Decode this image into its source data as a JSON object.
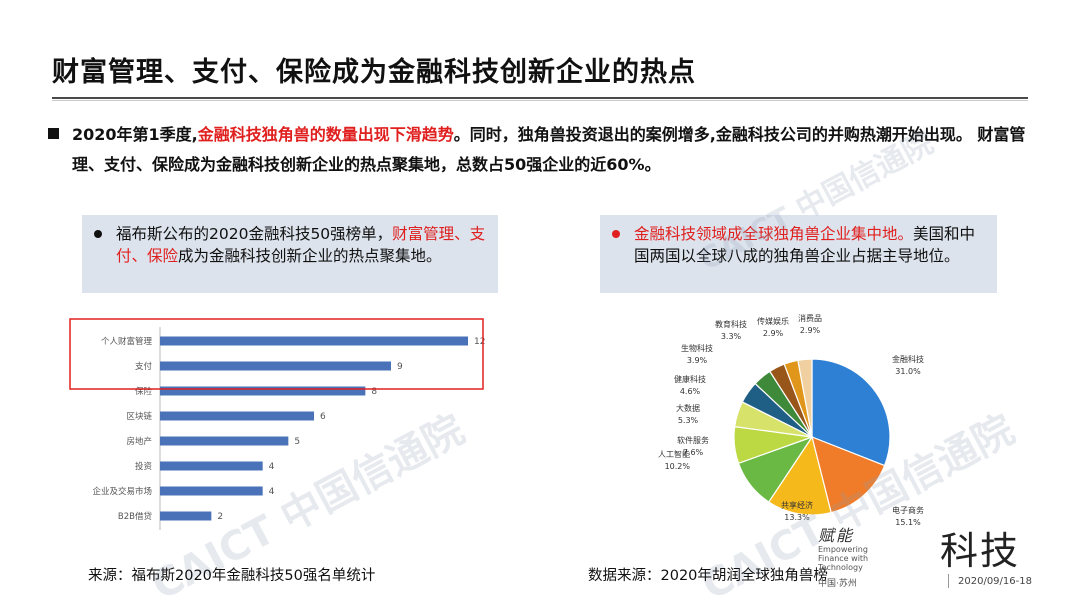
{
  "title": "财富管理、支付、保险成为金融科技创新企业的热点",
  "intro": {
    "part1": "2020年第1季度,",
    "highlight": "金融科技独角兽的数量出现下滑趋势",
    "part2": "。同时，独角兽投资退出的案例增多,金融科技公司的并购热潮开始出现。 财富管理、支付、保险成为金融科技创新企业的热点聚集地，总数占50强企业的近60%。"
  },
  "card_left": {
    "part1": "福布斯公布的2020金融科技50强榜单，",
    "highlight": "财富管理、支付、保险",
    "part2": "成为金融科技创新企业的热点聚集地。"
  },
  "card_right": {
    "highlight": "金融科技领域成全球独角兽企业集中地。",
    "part2": "美国和中国两国以全球八成的独角兽企业占据主导地位。"
  },
  "source_left": "来源：福布斯2020年金融科技50强名单统计",
  "source_right": "数据来源：2020年胡润全球独角兽榜",
  "watermark": "CAICT 中国信通院",
  "logo": {
    "brand_text": "科技",
    "sub_en": "Empowering Finance with Technology",
    "script_text": "赋能",
    "location": "中国·苏州",
    "date": "2020/09/16-18"
  },
  "colors": {
    "accent_red": "#e0201f",
    "bar_blue": "#4a72b8",
    "card_bg": "#dce3ec"
  },
  "chart_data": [
    {
      "type": "bar",
      "orientation": "horizontal",
      "categories": [
        "个人财富管理",
        "支付",
        "保险",
        "区块链",
        "房地产",
        "投资",
        "企业及交易市场",
        "B2B借贷"
      ],
      "values": [
        12,
        9,
        8,
        6,
        5,
        4,
        4,
        2
      ],
      "xlim": [
        0,
        12
      ],
      "highlighted_categories": [
        "个人财富管理",
        "支付"
      ]
    },
    {
      "type": "pie",
      "categories": [
        "金融科技",
        "电子商务",
        "共享经济",
        "人工智能",
        "软件服务",
        "大数据",
        "健康科技",
        "生物科技",
        "教育科技",
        "传媒娱乐",
        "消费品"
      ],
      "values": [
        31.0,
        15.1,
        13.3,
        10.2,
        7.6,
        5.3,
        4.6,
        3.9,
        3.3,
        2.9,
        2.9
      ],
      "value_labels": [
        "31.0%",
        "15.1%",
        "13.3%",
        "10.2%",
        "7.6%",
        "5.3%",
        "4.6%",
        "3.9%",
        "3.3%",
        "2.9%",
        "2.9%"
      ],
      "colors": [
        "#2e80d4",
        "#f07c29",
        "#f6b91c",
        "#69b944",
        "#bcd842",
        "#d7e26a",
        "#1f5f86",
        "#3f8a3a",
        "#98561b",
        "#e0961a",
        "#f0d0a0"
      ]
    }
  ]
}
